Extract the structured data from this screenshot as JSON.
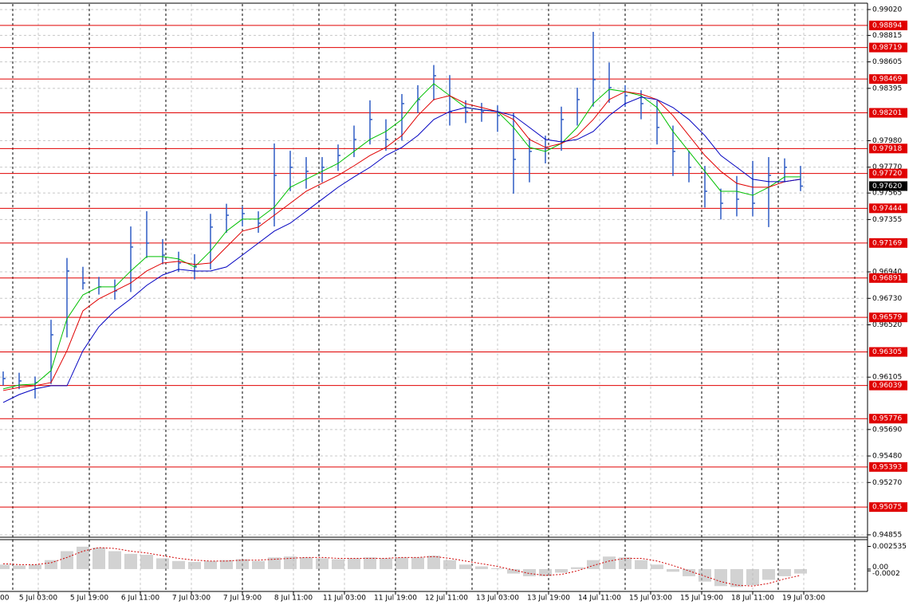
{
  "chart_data": {
    "type": "ohlc",
    "x": [
      0,
      5,
      10,
      15,
      20,
      25,
      30,
      35,
      40,
      45,
      50,
      55,
      60,
      65,
      70,
      75,
      80,
      85,
      90,
      95,
      100,
      105,
      110,
      115,
      120,
      125,
      130,
      135,
      140,
      145,
      150,
      155,
      160,
      165,
      170,
      175,
      180,
      185,
      190,
      195,
      200,
      205,
      210,
      215,
      220,
      225,
      230,
      235,
      240,
      245,
      250
    ],
    "high": [
      0.9615,
      0.9614,
      0.9611,
      0.9656,
      0.9705,
      0.9698,
      0.969,
      0.9688,
      0.973,
      0.97421,
      0.972,
      0.971,
      0.9708,
      0.974,
      0.9748,
      0.9746,
      0.9742,
      0.97958,
      0.979,
      0.9785,
      0.9785,
      0.9795,
      0.981,
      0.983,
      0.9815,
      0.9835,
      0.9842,
      0.9858,
      0.985,
      0.983,
      0.9828,
      0.9826,
      0.982,
      0.98,
      0.9802,
      0.9825,
      0.984,
      0.98843,
      0.986,
      0.9842,
      0.9838,
      0.983,
      0.981,
      0.979,
      0.9778,
      0.976,
      0.977,
      0.9782,
      0.9785,
      0.9784,
      0.9778
    ],
    "low": [
      0.9604,
      0.9601,
      0.95936,
      0.9605,
      0.9642,
      0.968,
      0.9676,
      0.9672,
      0.9678,
      0.9705,
      0.97,
      0.9694,
      0.9688,
      0.9696,
      0.9725,
      0.973,
      0.9725,
      0.973,
      0.9758,
      0.976,
      0.9765,
      0.9774,
      0.9785,
      0.9795,
      0.979,
      0.9798,
      0.982,
      0.983,
      0.981,
      0.9812,
      0.9813,
      0.9805,
      0.9756,
      0.9765,
      0.978,
      0.979,
      0.981,
      0.9825,
      0.9828,
      0.9825,
      0.9815,
      0.9795,
      0.977,
      0.9765,
      0.9745,
      0.97355,
      0.9738,
      0.9738,
      0.97295,
      0.9765,
      0.9758
    ],
    "close": [
      0.96094,
      0.96075,
      0.96062,
      0.96441,
      0.96947,
      0.96852,
      0.96821,
      0.96789,
      0.97137,
      0.97168,
      0.97073,
      0.9701,
      0.96979,
      0.97295,
      0.97389,
      0.97402,
      0.97326,
      0.97705,
      0.97769,
      0.97737,
      0.97769,
      0.97863,
      0.9799,
      0.98148,
      0.9799,
      0.98274,
      0.98306,
      0.98495,
      0.98211,
      0.98211,
      0.98211,
      0.98179,
      0.97832,
      0.97895,
      0.97927,
      0.98148,
      0.98306,
      0.98464,
      0.98401,
      0.98337,
      0.98274,
      0.98085,
      0.97895,
      0.97769,
      0.97579,
      0.97484,
      0.97516,
      0.97484,
      0.97705,
      0.97769,
      0.9762
    ],
    "bar_color": "#2f5cc4",
    "series": [
      {
        "color": "#00c000",
        "values": [
          0.96012,
          0.96043,
          0.9605,
          0.96157,
          0.96568,
          0.96757,
          0.96821,
          0.96821,
          0.96947,
          0.97061,
          0.97061,
          0.97042,
          0.96979,
          0.97105,
          0.97263,
          0.97358,
          0.97358,
          0.97453,
          0.97611,
          0.97674,
          0.97737,
          0.978,
          0.97895,
          0.9799,
          0.98053,
          0.98148,
          0.98306,
          0.98432,
          0.98337,
          0.98243,
          0.98224,
          0.98211,
          0.98085,
          0.97927,
          0.97895,
          0.97958,
          0.98085,
          0.98274,
          0.98388,
          0.98369,
          0.98337,
          0.98243,
          0.98053,
          0.97895,
          0.97737,
          0.97579,
          0.97579,
          0.97547,
          0.97611,
          0.97693,
          0.97693
        ]
      },
      {
        "color": "#e00000",
        "values": [
          0.95999,
          0.96024,
          0.96037,
          0.96062,
          0.96315,
          0.96631,
          0.96726,
          0.96789,
          0.96852,
          0.96947,
          0.9701,
          0.97023,
          0.96998,
          0.9701,
          0.97137,
          0.97263,
          0.97295,
          0.97389,
          0.97484,
          0.97579,
          0.97642,
          0.97705,
          0.97781,
          0.97863,
          0.97927,
          0.98021,
          0.98179,
          0.98306,
          0.98337,
          0.98274,
          0.98243,
          0.98211,
          0.98148,
          0.9799,
          0.97927,
          0.97958,
          0.98021,
          0.98148,
          0.98306,
          0.98369,
          0.9835,
          0.98306,
          0.98179,
          0.98021,
          0.97863,
          0.97737,
          0.97642,
          0.97611,
          0.97611,
          0.97655,
          0.97674
        ]
      },
      {
        "color": "#0000c0",
        "values": [
          0.95904,
          0.95967,
          0.96012,
          0.96037,
          0.96037,
          0.96315,
          0.96505,
          0.96631,
          0.96726,
          0.96833,
          0.96915,
          0.9696,
          0.96947,
          0.96947,
          0.96979,
          0.97073,
          0.97168,
          0.97263,
          0.97326,
          0.97421,
          0.97516,
          0.97611,
          0.97693,
          0.97769,
          0.97863,
          0.97927,
          0.98021,
          0.98148,
          0.98211,
          0.98243,
          0.98224,
          0.98211,
          0.98179,
          0.98085,
          0.9799,
          0.97971,
          0.9799,
          0.98053,
          0.98179,
          0.98274,
          0.98325,
          0.98306,
          0.98243,
          0.98148,
          0.98021,
          0.97863,
          0.97769,
          0.97674,
          0.97655,
          0.97655,
          0.97674
        ]
      }
    ],
    "xlim": [
      -1,
      271
    ],
    "ylim": [
      0.94842,
      0.99064
    ],
    "yticks": [
      {
        "value": 0.9902,
        "label": "0.99020"
      },
      {
        "value": 0.98815,
        "label": "0.98815"
      },
      {
        "value": 0.98605,
        "label": "0.98605"
      },
      {
        "value": 0.98395,
        "label": "0.98395"
      },
      {
        "value": 0.9798,
        "label": "0.97980"
      },
      {
        "value": 0.9777,
        "label": "0.97770"
      },
      {
        "value": 0.97565,
        "label": "0.97565"
      },
      {
        "value": 0.97355,
        "label": "0.97355"
      },
      {
        "value": 0.9694,
        "label": "0.96940"
      },
      {
        "value": 0.9673,
        "label": "0.96730"
      },
      {
        "value": 0.9652,
        "label": "0.96520"
      },
      {
        "value": 0.96105,
        "label": "0.96105"
      },
      {
        "value": 0.9569,
        "label": "0.95690"
      },
      {
        "value": 0.9548,
        "label": "0.95480"
      },
      {
        "value": 0.9527,
        "label": "0.95270"
      },
      {
        "value": 0.94855,
        "label": "0.94855"
      }
    ],
    "xticks": [
      {
        "value": -5,
        "label": "00"
      },
      {
        "value": 11,
        "label": "5 Jul 03:00"
      },
      {
        "value": 27,
        "label": "5 Jul 19:00"
      },
      {
        "value": 43,
        "label": "6 Jul 11:00"
      },
      {
        "value": 59,
        "label": "7 Jul 03:00"
      },
      {
        "value": 75,
        "label": "7 Jul 19:00"
      },
      {
        "value": 91,
        "label": "8 Jul 11:00"
      },
      {
        "value": 107,
        "label": "11 Jul 03:00"
      },
      {
        "value": 123,
        "label": "11 Jul 19:00"
      },
      {
        "value": 139,
        "label": "12 Jul 11:00"
      },
      {
        "value": 155,
        "label": "13 Jul 03:00"
      },
      {
        "value": 171,
        "label": "13 Jul 19:00"
      },
      {
        "value": 187,
        "label": "14 Jul 11:00"
      },
      {
        "value": 203,
        "label": "15 Jul 03:00"
      },
      {
        "value": 219,
        "label": "15 Jul 19:00"
      },
      {
        "value": 235,
        "label": "18 Jul 11:00"
      },
      {
        "value": 251,
        "label": "19 Jul 03:00"
      }
    ],
    "day_separators": [
      3,
      27,
      51,
      75,
      99,
      123,
      147,
      171,
      195,
      219,
      243,
      267
    ],
    "grid": true,
    "levels": [
      0.98894,
      0.98719,
      0.98469,
      0.98201,
      0.97918,
      0.9772,
      0.97444,
      0.97169,
      0.96891,
      0.96579,
      0.96305,
      0.96039,
      0.95776,
      0.95393,
      0.95075
    ],
    "level_labels": [
      "0.98894",
      "0.98719",
      "0.98469",
      "0.98201",
      "0.97918",
      "0.97720",
      "0.97444",
      "0.97169",
      "0.96891",
      "0.96579",
      "0.96305",
      "0.96039",
      "0.95776",
      "0.95393",
      "0.95075"
    ],
    "level_color": "#e00000",
    "last_price": 0.9762,
    "last_price_label": "0.97620",
    "oscillator": {
      "histogram": [
        0.0005,
        0.0004,
        0.0005,
        0.001,
        0.002,
        0.0025,
        0.0024,
        0.002,
        0.0017,
        0.0016,
        0.0012,
        0.0009,
        0.0008,
        0.0009,
        0.001,
        0.0011,
        0.0009,
        0.0013,
        0.0014,
        0.0013,
        0.0012,
        0.0011,
        0.0012,
        0.0013,
        0.0012,
        0.0013,
        0.0013,
        0.0015,
        0.001,
        0.0005,
        0.0003,
        0.0001,
        -0.0005,
        -0.0008,
        -0.0008,
        -0.0004,
        0.0002,
        0.001,
        0.0014,
        0.0013,
        0.001,
        0.0005,
        -0.0003,
        -0.0008,
        -0.0014,
        -0.0019,
        -0.002,
        -0.0018,
        -0.0012,
        -0.0008,
        -0.0005
      ],
      "signal": [
        0.0006,
        0.0005,
        0.0005,
        0.0007,
        0.0013,
        0.002,
        0.0024,
        0.0023,
        0.002,
        0.0018,
        0.0015,
        0.0012,
        0.001,
        0.0009,
        0.0009,
        0.001,
        0.001,
        0.0011,
        0.0012,
        0.0013,
        0.0013,
        0.0012,
        0.0012,
        0.0012,
        0.0012,
        0.0013,
        0.0013,
        0.0014,
        0.0012,
        0.0009,
        0.0006,
        0.0003,
        -0.0001,
        -0.0005,
        -0.0007,
        -0.0006,
        -0.0002,
        0.0004,
        0.0009,
        0.0012,
        0.0012,
        0.0009,
        0.0004,
        -0.0002,
        -0.0008,
        -0.0014,
        -0.0018,
        -0.0019,
        -0.0016,
        -0.0011,
        -0.0007
      ],
      "histogram_color": "#b4b4b4",
      "signal_color": "#d00000",
      "ylim": [
        -0.0025,
        0.0032
      ],
      "yticks": [
        0.002535,
        {
          "value": 0,
          "label": "0.00"
        },
        -0.0002
      ]
    }
  }
}
